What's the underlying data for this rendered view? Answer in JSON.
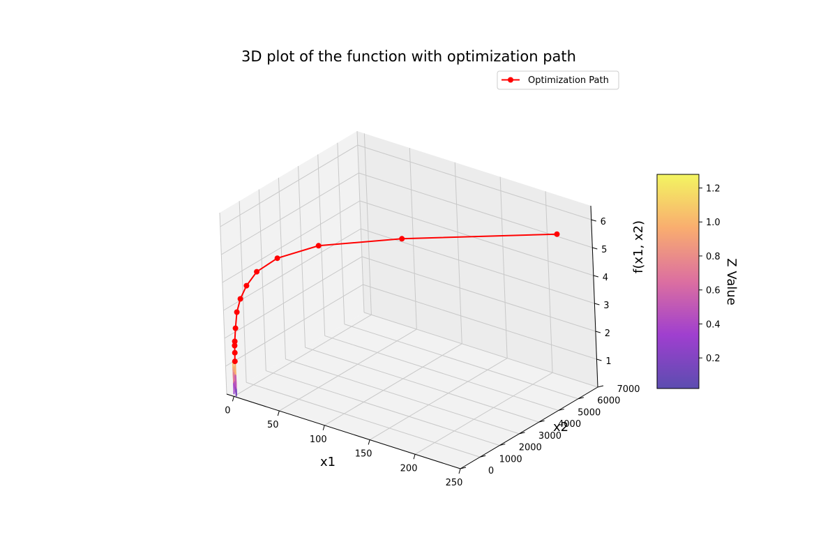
{
  "chart_data": {
    "type": "3d-surface-with-path",
    "title": "3D plot of the function with optimization path",
    "xlabel": "x1",
    "ylabel": "x2",
    "zlabel": "f(x1, x2)",
    "xlim": [
      -8,
      250
    ],
    "ylim": [
      0,
      7000
    ],
    "zlim": [
      0,
      6.5
    ],
    "x_ticks": [
      "0",
      "50",
      "100",
      "150",
      "200",
      "250"
    ],
    "y_ticks": [
      "0",
      "1000",
      "2000",
      "3000",
      "4000",
      "5000",
      "6000",
      "7000"
    ],
    "z_ticks": [
      "1",
      "2",
      "3",
      "4",
      "5",
      "6"
    ],
    "grid": true,
    "legend": {
      "placement": "upper-right",
      "entries": [
        "Optimization Path"
      ]
    },
    "series": [
      {
        "name": "Optimization Path",
        "type": "line-with-markers",
        "color": "#ff0000",
        "points": [
          {
            "x": 1.5,
            "y": 50,
            "z": 1.25
          },
          {
            "x": 1.3,
            "y": 70,
            "z": 1.55
          },
          {
            "x": 1.2,
            "y": 80,
            "z": 1.8
          },
          {
            "x": 1.3,
            "y": 90,
            "z": 1.95
          },
          {
            "x": 1.5,
            "y": 140,
            "z": 2.4
          },
          {
            "x": 2,
            "y": 220,
            "z": 2.95
          },
          {
            "x": 4,
            "y": 330,
            "z": 3.4
          },
          {
            "x": 8,
            "y": 480,
            "z": 3.85
          },
          {
            "x": 14,
            "y": 750,
            "z": 4.3
          },
          {
            "x": 28,
            "y": 1180,
            "z": 4.75
          },
          {
            "x": 58,
            "y": 1920,
            "z": 5.2
          },
          {
            "x": 125,
            "y": 3100,
            "z": 5.65
          },
          {
            "x": 248,
            "y": 5350,
            "z": 6.15
          }
        ]
      }
    ],
    "surface": {
      "colormap": "plasma",
      "x_range": [
        0,
        3
      ],
      "y_range": [
        0,
        10
      ],
      "z_range": [
        0.02,
        1.28
      ]
    },
    "colorbar": {
      "label": "Z Value",
      "ticks": [
        "0.2",
        "0.4",
        "0.6",
        "0.8",
        "1.0",
        "1.2"
      ],
      "tick_values": [
        0.2,
        0.4,
        0.6,
        0.8,
        1.0,
        1.2
      ],
      "range": [
        0.02,
        1.28
      ]
    }
  }
}
